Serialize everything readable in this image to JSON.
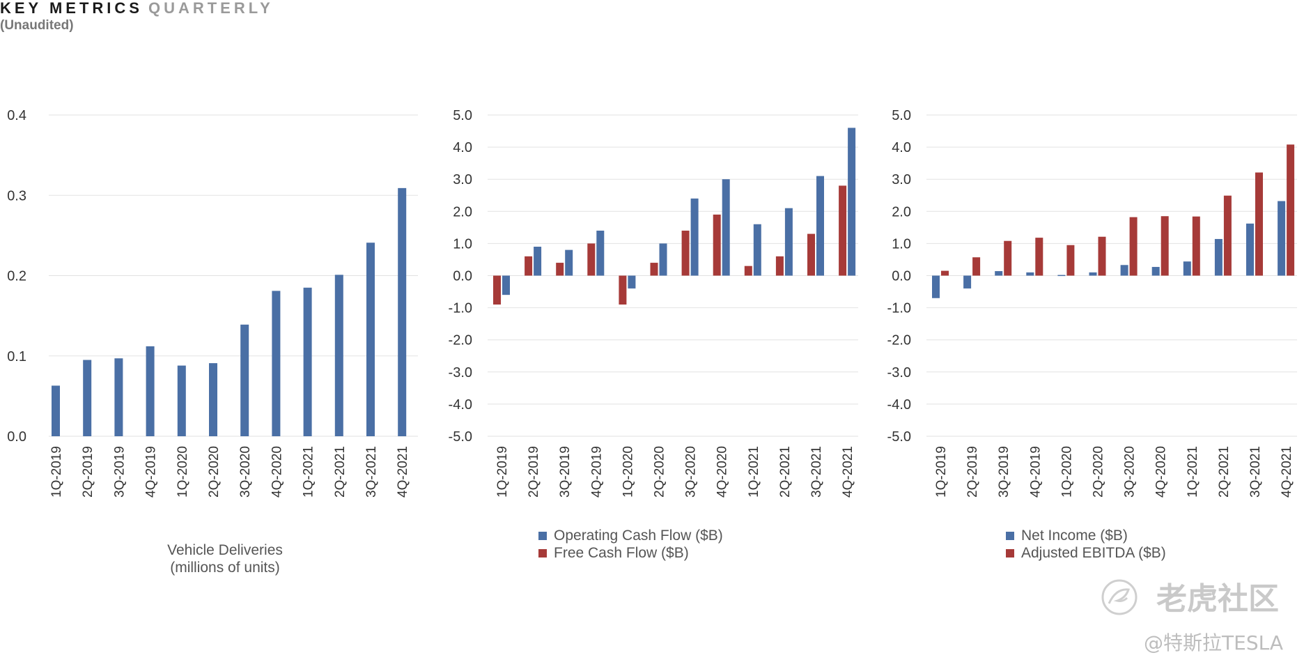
{
  "header": {
    "title_main": "KEY METRICS",
    "title_sub": "QUARTERLY",
    "subtitle": "(Unaudited)"
  },
  "colors": {
    "blue": "#4a6fa5",
    "red": "#a63a38",
    "grid": "#e2e2e2"
  },
  "watermark": {
    "brand": "老虎社区",
    "handle": "@特斯拉TESLA",
    "icon": "tiger-logo-icon"
  },
  "chart_data": [
    {
      "type": "bar",
      "title": "",
      "caption_lines": [
        "Vehicle Deliveries",
        "(millions of units)"
      ],
      "categories": [
        "1Q-2019",
        "2Q-2019",
        "3Q-2019",
        "4Q-2019",
        "1Q-2020",
        "2Q-2020",
        "3Q-2020",
        "4Q-2020",
        "1Q-2021",
        "2Q-2021",
        "3Q-2021",
        "4Q-2021"
      ],
      "ylim": [
        0,
        0.4
      ],
      "yticks": [
        "0.0",
        "0.1",
        "0.2",
        "0.3",
        "0.4"
      ],
      "grid": true,
      "series": [
        {
          "values": [
            0.063,
            0.095,
            0.097,
            0.112,
            0.088,
            0.091,
            0.139,
            0.181,
            0.185,
            0.201,
            0.241,
            0.309
          ],
          "color": "#4a6fa5"
        }
      ]
    },
    {
      "type": "bar",
      "title": "",
      "categories": [
        "1Q-2019",
        "2Q-2019",
        "3Q-2019",
        "4Q-2019",
        "1Q-2020",
        "2Q-2020",
        "3Q-2020",
        "4Q-2020",
        "1Q-2021",
        "2Q-2021",
        "3Q-2021",
        "4Q-2021"
      ],
      "ylim": [
        -5,
        5
      ],
      "yticks": [
        "-5.0",
        "-4.0",
        "-3.0",
        "-2.0",
        "-1.0",
        "0.0",
        "1.0",
        "2.0",
        "3.0",
        "4.0",
        "5.0"
      ],
      "grid": true,
      "legend": "bottom",
      "series": [
        {
          "name": "Free Cash Flow ($B)",
          "values": [
            -0.9,
            0.6,
            0.4,
            1.0,
            -0.9,
            0.4,
            1.4,
            1.9,
            0.3,
            0.6,
            1.3,
            2.8
          ],
          "color": "#a63a38"
        },
        {
          "name": "Operating Cash Flow ($B)",
          "values": [
            -0.6,
            0.9,
            0.8,
            1.4,
            -0.4,
            1.0,
            2.4,
            3.0,
            1.6,
            2.1,
            3.1,
            4.6
          ],
          "color": "#4a6fa5"
        }
      ],
      "legend_order": [
        "Operating Cash Flow ($B)",
        "Free Cash Flow ($B)"
      ]
    },
    {
      "type": "bar",
      "title": "",
      "categories": [
        "1Q-2019",
        "2Q-2019",
        "3Q-2019",
        "4Q-2019",
        "1Q-2020",
        "2Q-2020",
        "3Q-2020",
        "4Q-2020",
        "1Q-2021",
        "2Q-2021",
        "3Q-2021",
        "4Q-2021"
      ],
      "ylim": [
        -5,
        5
      ],
      "yticks": [
        "-5.0",
        "-4.0",
        "-3.0",
        "-2.0",
        "-1.0",
        "0.0",
        "1.0",
        "2.0",
        "3.0",
        "4.0",
        "5.0"
      ],
      "grid": true,
      "legend": "bottom",
      "series": [
        {
          "name": "Net Income ($B)",
          "values": [
            -0.7,
            -0.4,
            0.14,
            0.1,
            0.02,
            0.1,
            0.33,
            0.27,
            0.44,
            1.14,
            1.62,
            2.32
          ],
          "color": "#4a6fa5"
        },
        {
          "name": "Adjusted EBITDA ($B)",
          "values": [
            0.15,
            0.57,
            1.08,
            1.18,
            0.95,
            1.21,
            1.82,
            1.85,
            1.84,
            2.49,
            3.21,
            4.08
          ],
          "color": "#a63a38"
        }
      ],
      "legend_order": [
        "Net Income ($B)",
        "Adjusted EBITDA ($B)"
      ]
    }
  ]
}
